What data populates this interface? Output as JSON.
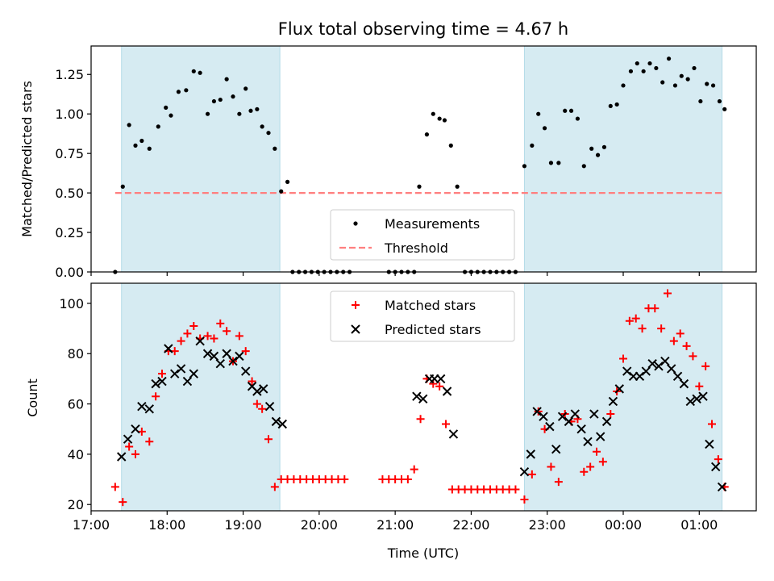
{
  "figure": {
    "title": "Flux total observing time = 4.67 h",
    "xlabel": "Time (UTC)"
  },
  "chart_data": [
    {
      "type": "scatter",
      "panel": "top",
      "ylabel": "Matched/Predicted stars",
      "xlim": [
        "17:00",
        "01:45"
      ],
      "ylim": [
        0,
        1.43
      ],
      "yticks": [
        "0.00",
        "0.25",
        "0.50",
        "0.75",
        "1.00",
        "1.25"
      ],
      "legend_position": "lower-center",
      "shaded_regions": [
        [
          "17:24",
          "19:29"
        ],
        [
          "22:42",
          "01:18"
        ]
      ],
      "threshold": {
        "name": "Threshold",
        "value": 0.5,
        "x_range": [
          "17:19",
          "01:18"
        ],
        "color": "#ff7f7f"
      },
      "series": [
        {
          "name": "Measurements",
          "color": "#000000",
          "marker": "dot",
          "points": [
            [
              "17:19",
              0.0
            ],
            [
              "17:25",
              0.54
            ],
            [
              "17:30",
              0.93
            ],
            [
              "17:35",
              0.8
            ],
            [
              "17:40",
              0.83
            ],
            [
              "17:46",
              0.78
            ],
            [
              "17:53",
              0.92
            ],
            [
              "17:59",
              1.04
            ],
            [
              "18:03",
              0.99
            ],
            [
              "18:09",
              1.14
            ],
            [
              "18:15",
              1.15
            ],
            [
              "18:21",
              1.27
            ],
            [
              "18:26",
              1.26
            ],
            [
              "18:32",
              1.0
            ],
            [
              "18:37",
              1.08
            ],
            [
              "18:42",
              1.09
            ],
            [
              "18:47",
              1.22
            ],
            [
              "18:52",
              1.11
            ],
            [
              "18:57",
              1.0
            ],
            [
              "19:02",
              1.16
            ],
            [
              "19:06",
              1.02
            ],
            [
              "19:11",
              1.03
            ],
            [
              "19:15",
              0.92
            ],
            [
              "19:20",
              0.88
            ],
            [
              "19:25",
              0.78
            ],
            [
              "19:30",
              0.51
            ],
            [
              "19:35",
              0.57
            ],
            [
              "19:39",
              0.0
            ],
            [
              "19:44",
              0.0
            ],
            [
              "19:49",
              0.0
            ],
            [
              "19:54",
              0.0
            ],
            [
              "19:59",
              0.0
            ],
            [
              "20:04",
              0.0
            ],
            [
              "20:09",
              0.0
            ],
            [
              "20:14",
              0.0
            ],
            [
              "20:19",
              0.0
            ],
            [
              "20:24",
              0.0
            ],
            [
              "20:55",
              0.0
            ],
            [
              "21:00",
              0.0
            ],
            [
              "21:05",
              0.0
            ],
            [
              "21:10",
              0.0
            ],
            [
              "21:15",
              0.0
            ],
            [
              "21:19",
              0.54
            ],
            [
              "21:25",
              0.87
            ],
            [
              "21:30",
              1.0
            ],
            [
              "21:35",
              0.97
            ],
            [
              "21:39",
              0.96
            ],
            [
              "21:44",
              0.8
            ],
            [
              "21:49",
              0.54
            ],
            [
              "21:55",
              0.0
            ],
            [
              "22:00",
              0.0
            ],
            [
              "22:05",
              0.0
            ],
            [
              "22:10",
              0.0
            ],
            [
              "22:15",
              0.0
            ],
            [
              "22:20",
              0.0
            ],
            [
              "22:25",
              0.0
            ],
            [
              "22:30",
              0.0
            ],
            [
              "22:35",
              0.0
            ],
            [
              "22:42",
              0.67
            ],
            [
              "22:48",
              0.8
            ],
            [
              "22:53",
              1.0
            ],
            [
              "22:58",
              0.91
            ],
            [
              "23:03",
              0.69
            ],
            [
              "23:09",
              0.69
            ],
            [
              "23:14",
              1.02
            ],
            [
              "23:19",
              1.02
            ],
            [
              "23:24",
              0.97
            ],
            [
              "23:29",
              0.67
            ],
            [
              "23:35",
              0.78
            ],
            [
              "23:40",
              0.74
            ],
            [
              "23:45",
              0.79
            ],
            [
              "23:50",
              1.05
            ],
            [
              "23:55",
              1.06
            ],
            [
              "00:00",
              1.18
            ],
            [
              "00:06",
              1.27
            ],
            [
              "00:11",
              1.32
            ],
            [
              "00:16",
              1.27
            ],
            [
              "00:21",
              1.32
            ],
            [
              "00:26",
              1.29
            ],
            [
              "00:31",
              1.2
            ],
            [
              "00:36",
              1.35
            ],
            [
              "00:41",
              1.18
            ],
            [
              "00:46",
              1.24
            ],
            [
              "00:51",
              1.22
            ],
            [
              "00:56",
              1.29
            ],
            [
              "01:01",
              1.08
            ],
            [
              "01:06",
              1.19
            ],
            [
              "01:11",
              1.18
            ],
            [
              "01:16",
              1.08
            ],
            [
              "01:20",
              1.03
            ]
          ]
        }
      ]
    },
    {
      "type": "scatter",
      "panel": "bottom",
      "ylabel": "Count",
      "xlim": [
        "17:00",
        "01:45"
      ],
      "ylim": [
        17.5,
        108
      ],
      "yticks": [
        "20",
        "40",
        "60",
        "80",
        "100"
      ],
      "xticks": [
        "17:00",
        "18:00",
        "19:00",
        "20:00",
        "21:00",
        "22:00",
        "23:00",
        "00:00",
        "01:00"
      ],
      "legend_position": "upper-center",
      "shaded_regions": [
        [
          "17:24",
          "19:29"
        ],
        [
          "22:42",
          "01:18"
        ]
      ],
      "series": [
        {
          "name": "Matched stars",
          "color": "#ff0000",
          "marker": "plus",
          "points": [
            [
              "17:19",
              27
            ],
            [
              "17:25",
              21
            ],
            [
              "17:30",
              43
            ],
            [
              "17:35",
              40
            ],
            [
              "17:40",
              49
            ],
            [
              "17:46",
              45
            ],
            [
              "17:51",
              63
            ],
            [
              "17:56",
              72
            ],
            [
              "18:01",
              81
            ],
            [
              "18:06",
              81
            ],
            [
              "18:11",
              85
            ],
            [
              "18:16",
              88
            ],
            [
              "18:21",
              91
            ],
            [
              "18:26",
              86
            ],
            [
              "18:32",
              87
            ],
            [
              "18:37",
              86
            ],
            [
              "18:42",
              92
            ],
            [
              "18:47",
              89
            ],
            [
              "18:52",
              77
            ],
            [
              "18:57",
              87
            ],
            [
              "19:02",
              81
            ],
            [
              "19:07",
              69
            ],
            [
              "19:11",
              60
            ],
            [
              "19:15",
              58
            ],
            [
              "19:20",
              46
            ],
            [
              "19:25",
              27
            ],
            [
              "19:30",
              30
            ],
            [
              "19:35",
              30
            ],
            [
              "19:40",
              30
            ],
            [
              "19:45",
              30
            ],
            [
              "19:50",
              30
            ],
            [
              "19:55",
              30
            ],
            [
              "20:00",
              30
            ],
            [
              "20:05",
              30
            ],
            [
              "20:10",
              30
            ],
            [
              "20:15",
              30
            ],
            [
              "20:20",
              30
            ],
            [
              "20:50",
              30
            ],
            [
              "20:55",
              30
            ],
            [
              "21:00",
              30
            ],
            [
              "21:05",
              30
            ],
            [
              "21:10",
              30
            ],
            [
              "21:15",
              34
            ],
            [
              "21:20",
              54
            ],
            [
              "21:25",
              70
            ],
            [
              "21:30",
              68
            ],
            [
              "21:35",
              67
            ],
            [
              "21:40",
              52
            ],
            [
              "21:45",
              26
            ],
            [
              "21:50",
              26
            ],
            [
              "21:55",
              26
            ],
            [
              "22:00",
              26
            ],
            [
              "22:05",
              26
            ],
            [
              "22:10",
              26
            ],
            [
              "22:15",
              26
            ],
            [
              "22:20",
              26
            ],
            [
              "22:25",
              26
            ],
            [
              "22:30",
              26
            ],
            [
              "22:35",
              26
            ],
            [
              "22:42",
              22
            ],
            [
              "22:48",
              32
            ],
            [
              "22:53",
              57
            ],
            [
              "22:58",
              50
            ],
            [
              "23:03",
              35
            ],
            [
              "23:09",
              29
            ],
            [
              "23:14",
              56
            ],
            [
              "23:19",
              53
            ],
            [
              "23:24",
              54
            ],
            [
              "23:29",
              33
            ],
            [
              "23:34",
              35
            ],
            [
              "23:39",
              41
            ],
            [
              "23:44",
              37
            ],
            [
              "23:50",
              56
            ],
            [
              "23:55",
              65
            ],
            [
              "00:00",
              78
            ],
            [
              "00:05",
              93
            ],
            [
              "00:10",
              94
            ],
            [
              "00:15",
              90
            ],
            [
              "00:20",
              98
            ],
            [
              "00:25",
              98
            ],
            [
              "00:30",
              90
            ],
            [
              "00:35",
              104
            ],
            [
              "00:40",
              85
            ],
            [
              "00:45",
              88
            ],
            [
              "00:50",
              83
            ],
            [
              "00:55",
              79
            ],
            [
              "01:00",
              67
            ],
            [
              "01:05",
              75
            ],
            [
              "01:10",
              52
            ],
            [
              "01:15",
              38
            ],
            [
              "01:20",
              27
            ]
          ]
        },
        {
          "name": "Predicted stars",
          "color": "#000000",
          "marker": "x",
          "points": [
            [
              "17:24",
              39
            ],
            [
              "17:29",
              46
            ],
            [
              "17:35",
              50
            ],
            [
              "17:40",
              59
            ],
            [
              "17:46",
              58
            ],
            [
              "17:51",
              68
            ],
            [
              "17:56",
              69
            ],
            [
              "18:01",
              82
            ],
            [
              "18:06",
              72
            ],
            [
              "18:11",
              74
            ],
            [
              "18:16",
              69
            ],
            [
              "18:21",
              72
            ],
            [
              "18:26",
              85
            ],
            [
              "18:32",
              80
            ],
            [
              "18:37",
              79
            ],
            [
              "18:42",
              76
            ],
            [
              "18:47",
              80
            ],
            [
              "18:52",
              77
            ],
            [
              "18:57",
              79
            ],
            [
              "19:02",
              73
            ],
            [
              "19:07",
              67
            ],
            [
              "19:11",
              65
            ],
            [
              "19:16",
              66
            ],
            [
              "19:21",
              59
            ],
            [
              "19:26",
              53
            ],
            [
              "19:31",
              52
            ],
            [
              "21:17",
              63
            ],
            [
              "21:22",
              62
            ],
            [
              "21:27",
              70
            ],
            [
              "21:31",
              70
            ],
            [
              "21:36",
              70
            ],
            [
              "21:41",
              65
            ],
            [
              "21:46",
              48
            ],
            [
              "22:42",
              33
            ],
            [
              "22:47",
              40
            ],
            [
              "22:52",
              57
            ],
            [
              "22:57",
              55
            ],
            [
              "23:02",
              51
            ],
            [
              "23:07",
              42
            ],
            [
              "23:12",
              55
            ],
            [
              "23:17",
              53
            ],
            [
              "23:22",
              56
            ],
            [
              "23:27",
              50
            ],
            [
              "23:32",
              45
            ],
            [
              "23:37",
              56
            ],
            [
              "23:42",
              47
            ],
            [
              "23:47",
              53
            ],
            [
              "23:52",
              61
            ],
            [
              "23:57",
              66
            ],
            [
              "00:03",
              73
            ],
            [
              "00:08",
              71
            ],
            [
              "00:13",
              71
            ],
            [
              "00:18",
              73
            ],
            [
              "00:23",
              76
            ],
            [
              "00:28",
              75
            ],
            [
              "00:33",
              77
            ],
            [
              "00:38",
              74
            ],
            [
              "00:43",
              71
            ],
            [
              "00:48",
              68
            ],
            [
              "00:53",
              61
            ],
            [
              "00:58",
              62
            ],
            [
              "01:03",
              63
            ],
            [
              "01:08",
              44
            ],
            [
              "01:13",
              35
            ],
            [
              "01:18",
              27
            ]
          ]
        }
      ]
    }
  ],
  "colors": {
    "shade": "#add8e6",
    "threshold": "#ff7f7f",
    "matched": "#ff0000",
    "predicted": "#000000"
  }
}
